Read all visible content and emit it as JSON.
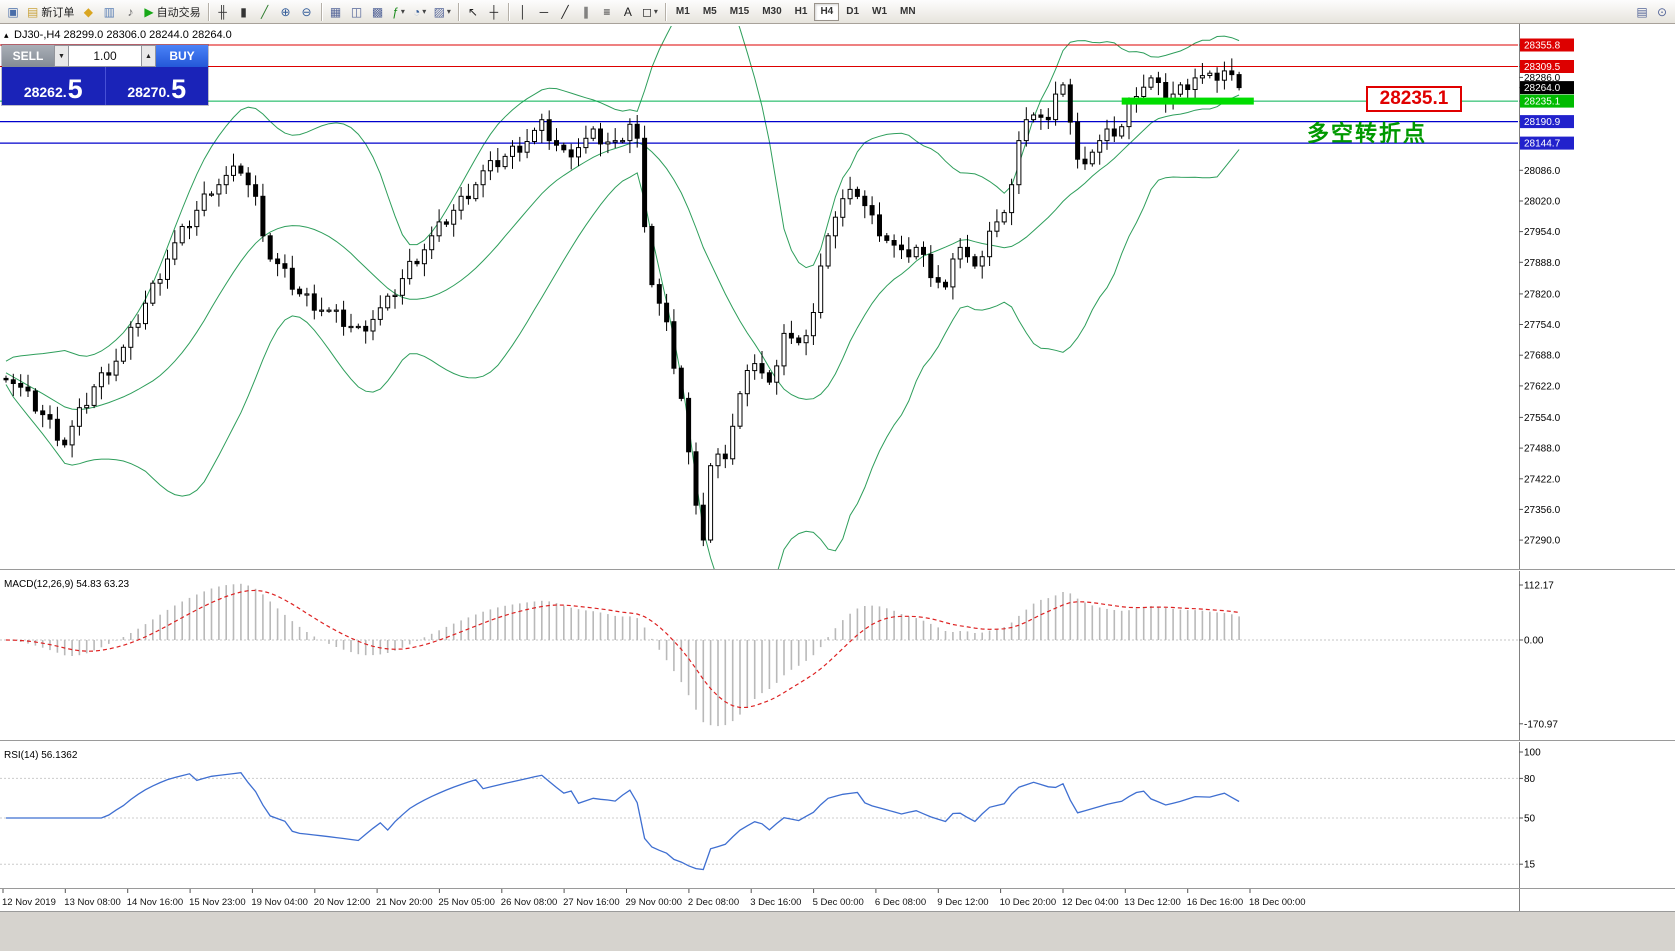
{
  "icons": {
    "collapse": "▴",
    "dropdown": "▾",
    "spinner_down": "▼",
    "spinner_up": "▲"
  },
  "colors": {
    "chart_bg": "#ffffff",
    "window_bg": "#d6d3ce",
    "resistance_line": "#dd0000",
    "support_line": "#0000cc",
    "pivot_line": "#00b050",
    "highlight": "#00dd00",
    "bollinger": "#2e9e5b",
    "macd_histogram": "#b9b9b9",
    "macd_signal": "#dd2222",
    "rsi_line": "#3f6fd1",
    "buy_blue": "#2f66ee",
    "sell_gray": "#8f959d",
    "panel_blue": "#1a23b8"
  },
  "toolbar": {
    "items": [
      {
        "name": "new-chart-button",
        "glyph": "▣",
        "color": "#4a6ea9"
      },
      {
        "name": "new-order-button",
        "glyph": "▤",
        "label": "新订单",
        "color": "#c9a33c"
      },
      {
        "name": "package-icon-button",
        "glyph": "◆",
        "color": "#d9a520"
      },
      {
        "name": "terminal-button",
        "glyph": "▥",
        "color": "#5a7fb5"
      },
      {
        "name": "alerts-sound-button",
        "glyph": "♪",
        "color": "#666666"
      },
      {
        "name": "autotrading-button",
        "glyph": "▶",
        "label": "自动交易",
        "color": "#18a818"
      },
      {
        "sep": true
      },
      {
        "name": "bar-chart-button",
        "glyph": "╫",
        "color": "#333333"
      },
      {
        "name": "candlestick-chart-button",
        "glyph": "▮",
        "color": "#333333"
      },
      {
        "name": "line-chart-button",
        "glyph": "╱",
        "color": "#2a7a2a"
      },
      {
        "name": "zoom-in-button",
        "glyph": "⊕",
        "color": "#335c99"
      },
      {
        "name": "zoom-out-button",
        "glyph": "⊖",
        "color": "#335c99"
      },
      {
        "sep": true
      },
      {
        "name": "tile-windows-button",
        "glyph": "▦",
        "color": "#556699"
      },
      {
        "name": "arrange-windows-button",
        "glyph": "◫",
        "color": "#556699"
      },
      {
        "name": "cascade-windows-button",
        "glyph": "▩",
        "color": "#556699"
      },
      {
        "name": "indicators-button",
        "glyph": "ƒ",
        "color": "#1a8a1a",
        "dropdown": true
      },
      {
        "name": "periods-button",
        "glyph": "◔",
        "color": "#335c99",
        "dropdown": true
      },
      {
        "name": "templates-button",
        "glyph": "▨",
        "color": "#556699",
        "dropdown": true
      },
      {
        "sep": true
      },
      {
        "name": "cursor-button",
        "glyph": "↖",
        "color": "#222222"
      },
      {
        "name": "crosshair-button",
        "glyph": "┼",
        "color": "#222222"
      },
      {
        "sep": true
      },
      {
        "name": "vertical-line-button",
        "glyph": "│",
        "color": "#222222"
      },
      {
        "name": "horizontal-line-button",
        "glyph": "─",
        "color": "#222222"
      },
      {
        "name": "trendline-button",
        "glyph": "╱",
        "color": "#222222"
      },
      {
        "name": "channel-button",
        "glyph": "∥",
        "color": "#222222"
      },
      {
        "name": "fibonacci-button",
        "glyph": "≡",
        "color": "#222222"
      },
      {
        "name": "text-tool-button",
        "glyph": "A",
        "color": "#222222"
      },
      {
        "name": "shapes-button",
        "glyph": "◻",
        "color": "#222222",
        "dropdown": true
      },
      {
        "sep": true
      }
    ],
    "timeframes": [
      "M1",
      "M5",
      "M15",
      "M30",
      "H1",
      "H4",
      "D1",
      "W1",
      "MN"
    ],
    "active_timeframe": "H4",
    "right_items": [
      {
        "name": "data-window-button",
        "glyph": "▤",
        "color": "#556699"
      },
      {
        "name": "search-button",
        "glyph": "⊙",
        "color": "#556699"
      }
    ]
  },
  "chart": {
    "header": "DJ30-,H4 28299.0 28306.0 28244.0 28264.0",
    "symbol": "DJ30-",
    "period": "H4",
    "open": "28299.0",
    "high": "28306.0",
    "low": "28244.0",
    "close": "28264.0"
  },
  "trade_panel": {
    "sell_label": "SELL",
    "buy_label": "BUY",
    "volume": "1.00",
    "sell_price": "28262.",
    "sell_price_big": "5",
    "buy_price": "28270.",
    "buy_price_big": "5"
  },
  "annotations": {
    "price_box": "28235.1",
    "turning_point": "多空转折点"
  },
  "price_axis": {
    "special": [
      {
        "value": 28355.8,
        "label": "28355.8",
        "bg": "#dd0000",
        "fg": "#ffffff",
        "line": "#dd0000",
        "width": 1
      },
      {
        "value": 28309.5,
        "label": "28309.5",
        "bg": "#dd0000",
        "fg": "#ffffff",
        "line": "#dd0000",
        "width": 1
      },
      {
        "value": 28286.0,
        "label": "28286.0",
        "bg": null,
        "fg": "#000000"
      },
      {
        "value": 28264.0,
        "label": "28264.0",
        "bg": "#000000",
        "fg": "#ffffff"
      },
      {
        "value": 28235.1,
        "label": "28235.1",
        "bg": "#00bb00",
        "fg": "#ffffff",
        "line": "#00b050",
        "width": 1
      },
      {
        "value": 28190.9,
        "label": "28190.9",
        "bg": "#2222cc",
        "fg": "#ffffff",
        "line": "#0000cc",
        "width": 1.3
      },
      {
        "value": 28144.7,
        "label": "28144.7",
        "bg": "#2222cc",
        "fg": "#ffffff",
        "line": "#0000cc",
        "width": 1.3
      }
    ],
    "ticks": [
      "28086.0",
      "28020.0",
      "27954.0",
      "27888.0",
      "27820.0",
      "27754.0",
      "27688.0",
      "27622.0",
      "27554.0",
      "27488.0",
      "27422.0",
      "27356.0",
      "27290.0"
    ]
  },
  "macd": {
    "label": "MACD(12,26,9) 54.83 63.23",
    "axis": [
      "112.17",
      "0.00",
      "-170.97"
    ]
  },
  "rsi": {
    "label": "RSI(14) 56.1362",
    "axis": [
      "100",
      "80",
      "50",
      "15"
    ]
  },
  "time_axis": [
    "12 Nov 2019",
    "13 Nov 08:00",
    "14 Nov 16:00",
    "15 Nov 23:00",
    "19 Nov 04:00",
    "20 Nov 12:00",
    "21 Nov 20:00",
    "25 Nov 05:00",
    "26 Nov 08:00",
    "27 Nov 16:00",
    "29 Nov 00:00",
    "2 Dec 08:00",
    "3 Dec 16:00",
    "5 Dec 00:00",
    "6 Dec 08:00",
    "9 Dec 12:00",
    "10 Dec 20:00",
    "12 Dec 04:00",
    "13 Dec 12:00",
    "16 Dec 16:00",
    "18 Dec 00:00"
  ],
  "chart_data": {
    "type": "candlestick",
    "symbol": "DJ30-",
    "timeframe": "H4",
    "current_bar": {
      "open": 28299.0,
      "high": 28306.0,
      "low": 28244.0,
      "close": 28264.0
    },
    "visible_price_range": [
      27290.0,
      28355.8
    ],
    "bollinger_period": 20,
    "bollinger_deviation": 2,
    "macd_params": [
      12,
      26,
      9
    ],
    "rsi_period": 14,
    "levels": [
      {
        "price": 28355.8,
        "color": "#dd0000",
        "role": "resistance"
      },
      {
        "price": 28309.5,
        "color": "#dd0000",
        "role": "resistance"
      },
      {
        "price": 28235.1,
        "color": "#00b050",
        "role": "pivot"
      },
      {
        "price": 28190.9,
        "color": "#0000cc",
        "role": "support"
      },
      {
        "price": 28144.7,
        "color": "#0000cc",
        "role": "support"
      }
    ],
    "highlight_segment": {
      "price": 28235.1,
      "from_index": 152,
      "to_index": 170,
      "color": "#00dd00"
    },
    "closes": [
      27650,
      27632,
      27614,
      27596,
      27578,
      27560,
      27540,
      27520,
      27500,
      27530,
      27560,
      27590,
      27620,
      27640,
      27660,
      27680,
      27700,
      27733,
      27766,
      27800,
      27833,
      27866,
      27900,
      27925,
      27950,
      27975,
      28000,
      28025,
      28050,
      28060,
      28070,
      28080,
      28090,
      28055,
      28020,
      27960,
      27900,
      27880,
      27860,
      27840,
      27820,
      27810,
      27800,
      27790,
      27780,
      27770,
      27760,
      27750,
      27740,
      27755,
      27770,
      27785,
      27800,
      27827,
      27853,
      27880,
      27900,
      27920,
      27940,
      27960,
      27980,
      28000,
      28020,
      28040,
      28060,
      28080,
      28092,
      28104,
      28116,
      28128,
      28140,
      28153,
      28167,
      28180,
      28160,
      28140,
      28120,
      28130,
      28140,
      28150,
      28160,
      28153,
      28147,
      28140,
      28165,
      28190,
      28150,
      27950,
      27850,
      27800,
      27750,
      27675,
      27600,
      27475,
      27350,
      27300,
      27450,
      27465,
      27480,
      27540,
      27600,
      27640,
      27680,
      27650,
      27620,
      27680,
      27740,
      27720,
      27700,
      27740,
      27780,
      27870,
      27960,
      27990,
      28020,
      28030,
      28040,
      28010,
      27980,
      27960,
      27940,
      27920,
      27900,
      27910,
      27920,
      27895,
      27870,
      27850,
      27830,
      27880,
      27930,
      27900,
      27870,
      27915,
      27960,
      27970,
      27980,
      28065,
      28150,
      28185,
      28220,
      28205,
      28190,
      28235,
      28280,
      28190,
      28100,
      28115,
      28130,
      28145,
      28160,
      28170,
      28180,
      28220,
      28260,
      28270,
      28280,
      28260,
      28240,
      28250,
      28260,
      28275,
      28290,
      28285,
      28280,
      28290,
      28300,
      28282,
      28264
    ]
  }
}
